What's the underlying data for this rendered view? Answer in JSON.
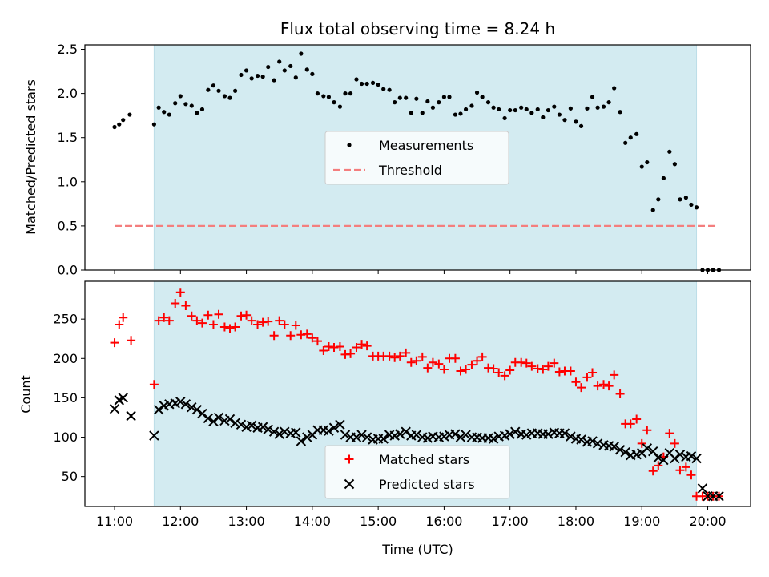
{
  "chart_data": [
    {
      "type": "scatter",
      "title": "Flux total observing time = 8.24 h",
      "ylabel": "Matched/Predicted stars",
      "xlabel": "",
      "xlim": [
        10.55,
        20.65
      ],
      "ylim": [
        0,
        2.55
      ],
      "y_ticks": [
        0.0,
        0.5,
        1.0,
        1.5,
        2.0,
        2.5
      ],
      "y_tick_labels": [
        "0.0",
        "0.5",
        "1.0",
        "1.5",
        "2.0",
        "2.5"
      ],
      "observing_window": {
        "start": 11.6,
        "end": 19.83,
        "color": "#d3ebf1"
      },
      "legend_position": "center",
      "series": [
        {
          "name": "Measurements",
          "marker": "dot",
          "color": "#000000",
          "x": [
            11.0,
            11.07,
            11.13,
            11.23,
            11.6,
            11.67,
            11.75,
            11.83,
            11.92,
            12.0,
            12.08,
            12.17,
            12.25,
            12.33,
            12.42,
            12.5,
            12.58,
            12.67,
            12.75,
            12.83,
            12.92,
            13.0,
            13.08,
            13.17,
            13.25,
            13.33,
            13.42,
            13.5,
            13.58,
            13.67,
            13.75,
            13.83,
            13.92,
            14.0,
            14.08,
            14.17,
            14.25,
            14.33,
            14.42,
            14.5,
            14.58,
            14.67,
            14.75,
            14.83,
            14.92,
            15.0,
            15.08,
            15.17,
            15.25,
            15.33,
            15.42,
            15.5,
            15.58,
            15.67,
            15.75,
            15.83,
            15.92,
            16.0,
            16.08,
            16.17,
            16.25,
            16.33,
            16.42,
            16.5,
            16.58,
            16.67,
            16.75,
            16.83,
            16.92,
            17.0,
            17.08,
            17.17,
            17.25,
            17.33,
            17.42,
            17.5,
            17.58,
            17.67,
            17.75,
            17.83,
            17.92,
            18.0,
            18.08,
            18.17,
            18.25,
            18.33,
            18.42,
            18.5,
            18.58,
            18.67,
            18.75,
            18.83,
            18.92,
            19.0,
            19.08,
            19.17,
            19.25,
            19.33,
            19.42,
            19.5,
            19.58,
            19.67,
            19.75,
            19.83,
            19.92,
            20.0,
            20.08,
            20.17
          ],
          "y": [
            1.62,
            1.65,
            1.7,
            1.76,
            1.65,
            1.84,
            1.79,
            1.76,
            1.89,
            1.97,
            1.88,
            1.86,
            1.78,
            1.82,
            2.04,
            2.09,
            2.03,
            1.97,
            1.95,
            2.03,
            2.21,
            2.26,
            2.17,
            2.2,
            2.19,
            2.3,
            2.15,
            2.36,
            2.26,
            2.31,
            2.18,
            2.45,
            2.27,
            2.22,
            2.0,
            1.97,
            1.96,
            1.9,
            1.85,
            2.0,
            2.0,
            2.16,
            2.11,
            2.11,
            2.12,
            2.1,
            2.05,
            2.04,
            1.9,
            1.95,
            1.95,
            1.78,
            1.94,
            1.78,
            1.91,
            1.84,
            1.9,
            1.96,
            1.96,
            1.76,
            1.77,
            1.82,
            1.86,
            2.01,
            1.96,
            1.9,
            1.84,
            1.82,
            1.72,
            1.81,
            1.81,
            1.84,
            1.82,
            1.78,
            1.82,
            1.73,
            1.81,
            1.85,
            1.76,
            1.7,
            1.83,
            1.68,
            1.63,
            1.83,
            1.96,
            1.84,
            1.85,
            1.9,
            2.06,
            1.79,
            1.44,
            1.5,
            1.54,
            1.17,
            1.22,
            0.68,
            0.8,
            1.04,
            1.34,
            1.2,
            0.8,
            0.82,
            0.74,
            0.71,
            0.0,
            0.0,
            0.0,
            0.0
          ]
        },
        {
          "name": "Threshold",
          "marker": "dashed-line",
          "color": "#f47e7e",
          "x": [
            11.0,
            20.17
          ],
          "y": [
            0.5,
            0.5
          ]
        }
      ]
    },
    {
      "type": "scatter",
      "title": "",
      "ylabel": "Count",
      "xlabel": "Time (UTC)",
      "xlim": [
        10.55,
        20.65
      ],
      "ylim": [
        12,
        298
      ],
      "x_ticks": [
        11,
        12,
        13,
        14,
        15,
        16,
        17,
        18,
        19,
        20
      ],
      "x_tick_labels": [
        "11:00",
        "12:00",
        "13:00",
        "14:00",
        "15:00",
        "16:00",
        "17:00",
        "18:00",
        "19:00",
        "20:00"
      ],
      "y_ticks": [
        50,
        100,
        150,
        200,
        250
      ],
      "y_tick_labels": [
        "50",
        "100",
        "150",
        "200",
        "250"
      ],
      "observing_window": {
        "start": 11.6,
        "end": 19.83,
        "color": "#d3ebf1"
      },
      "legend_position": "lower center",
      "series": [
        {
          "name": "Matched stars",
          "marker": "plus",
          "color": "#ff0000",
          "x": [
            11.0,
            11.07,
            11.13,
            11.25,
            11.6,
            11.67,
            11.75,
            11.83,
            11.92,
            12.0,
            12.08,
            12.17,
            12.25,
            12.33,
            12.42,
            12.5,
            12.58,
            12.67,
            12.75,
            12.83,
            12.92,
            13.0,
            13.08,
            13.17,
            13.25,
            13.33,
            13.42,
            13.5,
            13.58,
            13.67,
            13.75,
            13.83,
            13.92,
            14.0,
            14.08,
            14.17,
            14.25,
            14.33,
            14.42,
            14.5,
            14.58,
            14.67,
            14.75,
            14.83,
            14.92,
            15.0,
            15.08,
            15.17,
            15.25,
            15.33,
            15.42,
            15.5,
            15.58,
            15.67,
            15.75,
            15.83,
            15.92,
            16.0,
            16.08,
            16.17,
            16.25,
            16.33,
            16.42,
            16.5,
            16.58,
            16.67,
            16.75,
            16.83,
            16.92,
            17.0,
            17.08,
            17.17,
            17.25,
            17.33,
            17.42,
            17.5,
            17.58,
            17.67,
            17.75,
            17.83,
            17.92,
            18.0,
            18.08,
            18.17,
            18.25,
            18.33,
            18.42,
            18.5,
            18.58,
            18.67,
            18.75,
            18.83,
            18.92,
            19.0,
            19.08,
            19.17,
            19.25,
            19.33,
            19.42,
            19.5,
            19.58,
            19.67,
            19.75,
            19.83,
            19.92,
            20.0,
            20.08,
            20.17
          ],
          "y": [
            220,
            243,
            252,
            223,
            167,
            248,
            252,
            248,
            270,
            284,
            267,
            254,
            248,
            245,
            255,
            243,
            256,
            240,
            238,
            240,
            254,
            255,
            248,
            243,
            246,
            247,
            229,
            248,
            243,
            229,
            242,
            230,
            231,
            226,
            222,
            210,
            215,
            214,
            215,
            205,
            206,
            214,
            218,
            216,
            203,
            203,
            203,
            203,
            201,
            203,
            207,
            195,
            197,
            202,
            188,
            195,
            193,
            186,
            200,
            200,
            184,
            186,
            192,
            197,
            202,
            188,
            187,
            182,
            178,
            185,
            195,
            195,
            194,
            190,
            187,
            186,
            190,
            194,
            183,
            184,
            184,
            170,
            163,
            176,
            182,
            165,
            167,
            165,
            179,
            155,
            117,
            117,
            123,
            92,
            109,
            57,
            64,
            75,
            105,
            92,
            58,
            62,
            52,
            25,
            25,
            25,
            25,
            25
          ]
        },
        {
          "name": "Predicted stars",
          "marker": "x",
          "color": "#000000",
          "x": [
            11.0,
            11.07,
            11.13,
            11.25,
            11.6,
            11.67,
            11.75,
            11.83,
            11.92,
            12.0,
            12.08,
            12.17,
            12.25,
            12.33,
            12.42,
            12.5,
            12.58,
            12.67,
            12.75,
            12.83,
            12.92,
            13.0,
            13.08,
            13.17,
            13.25,
            13.33,
            13.42,
            13.5,
            13.58,
            13.67,
            13.75,
            13.83,
            13.92,
            14.0,
            14.08,
            14.17,
            14.25,
            14.33,
            14.42,
            14.5,
            14.58,
            14.67,
            14.75,
            14.83,
            14.92,
            15.0,
            15.08,
            15.17,
            15.25,
            15.33,
            15.42,
            15.5,
            15.58,
            15.67,
            15.75,
            15.83,
            15.92,
            16.0,
            16.08,
            16.17,
            16.25,
            16.33,
            16.42,
            16.5,
            16.58,
            16.67,
            16.75,
            16.83,
            16.92,
            17.0,
            17.08,
            17.17,
            17.25,
            17.33,
            17.42,
            17.5,
            17.58,
            17.67,
            17.75,
            17.83,
            17.92,
            18.0,
            18.08,
            18.17,
            18.25,
            18.33,
            18.42,
            18.5,
            18.58,
            18.67,
            18.75,
            18.83,
            18.92,
            19.0,
            19.08,
            19.17,
            19.25,
            19.33,
            19.42,
            19.5,
            19.58,
            19.67,
            19.75,
            19.83,
            19.92,
            20.0,
            20.08,
            20.17
          ],
          "y": [
            136,
            147,
            150,
            127,
            102,
            135,
            140,
            142,
            143,
            145,
            142,
            138,
            135,
            130,
            124,
            120,
            125,
            121,
            123,
            118,
            116,
            113,
            115,
            112,
            113,
            110,
            107,
            104,
            107,
            105,
            106,
            95,
            100,
            103,
            109,
            109,
            108,
            112,
            116,
            103,
            100,
            100,
            103,
            100,
            97,
            98,
            98,
            103,
            102,
            104,
            107,
            102,
            103,
            100,
            99,
            101,
            100,
            101,
            103,
            104,
            100,
            103,
            100,
            100,
            99,
            99,
            98,
            101,
            102,
            104,
            107,
            104,
            103,
            105,
            105,
            104,
            104,
            106,
            105,
            105,
            101,
            98,
            97,
            94,
            95,
            92,
            90,
            89,
            88,
            84,
            81,
            77,
            78,
            80,
            86,
            82,
            74,
            71,
            80,
            73,
            78,
            75,
            76,
            73,
            35,
            25,
            25,
            25
          ]
        }
      ]
    }
  ]
}
